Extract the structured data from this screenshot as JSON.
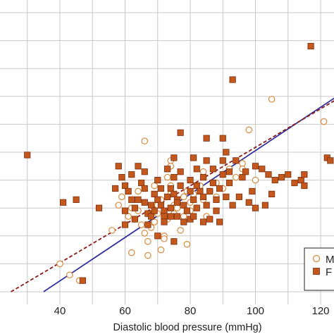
{
  "chart_data": {
    "type": "scatter",
    "xlabel": "Diastolic blood pressure (mmHg)",
    "ylabel": "",
    "xlim": [
      25,
      125
    ],
    "ylim": [
      0,
      100
    ],
    "x_ticks": [
      40,
      60,
      80,
      100,
      120
    ],
    "grid": true,
    "legend_position": "bottom-right",
    "colors": {
      "male": "#d98a3a",
      "female": "#c4581c",
      "male_line": "#3333a0",
      "female_line": "#8b1a1a"
    },
    "series": [
      {
        "name": "M",
        "marker": "open-circle",
        "points": [
          [
            40,
            10
          ],
          [
            43,
            6
          ],
          [
            46,
            4
          ],
          [
            56,
            22
          ],
          [
            58,
            31
          ],
          [
            59,
            34
          ],
          [
            61,
            27
          ],
          [
            62,
            30
          ],
          [
            63,
            26
          ],
          [
            64,
            29
          ],
          [
            65,
            24
          ],
          [
            66,
            21
          ],
          [
            67,
            18
          ],
          [
            68,
            23
          ],
          [
            69,
            25
          ],
          [
            70,
            28
          ],
          [
            70,
            31
          ],
          [
            71,
            15
          ],
          [
            72,
            20
          ],
          [
            72,
            19
          ],
          [
            73,
            26
          ],
          [
            74,
            35
          ],
          [
            74,
            38
          ],
          [
            75,
            31
          ],
          [
            75,
            28
          ],
          [
            76,
            30
          ],
          [
            77,
            22
          ],
          [
            78,
            27
          ],
          [
            78,
            34
          ],
          [
            79,
            36
          ],
          [
            80,
            29
          ],
          [
            80,
            32
          ],
          [
            81,
            35
          ],
          [
            82,
            30
          ],
          [
            83,
            38
          ],
          [
            84,
            33
          ],
          [
            85,
            27
          ],
          [
            86,
            36
          ],
          [
            87,
            39
          ],
          [
            88,
            34
          ],
          [
            90,
            37
          ],
          [
            92,
            44
          ],
          [
            94,
            41
          ],
          [
            96,
            46
          ],
          [
            98,
            58
          ],
          [
            100,
            40
          ],
          [
            105,
            69
          ],
          [
            121,
            61
          ],
          [
            62,
            14
          ],
          [
            67,
            13
          ],
          [
            66,
            54
          ],
          [
            73,
            41
          ],
          [
            74,
            45
          ],
          [
            79,
            17
          ],
          [
            84,
            43
          ],
          [
            88,
            39
          ],
          [
            96,
            44
          ],
          [
            74,
            47
          ],
          [
            71,
            33
          ],
          [
            69,
            38
          ],
          [
            64,
            36
          ]
        ]
      },
      {
        "name": "F",
        "marker": "filled-square",
        "points": [
          [
            30,
            49
          ],
          [
            47,
            4
          ],
          [
            41,
            32
          ],
          [
            45,
            33
          ],
          [
            52,
            30
          ],
          [
            58,
            45
          ],
          [
            60,
            29
          ],
          [
            60,
            38
          ],
          [
            60,
            24
          ],
          [
            61,
            36
          ],
          [
            62,
            42
          ],
          [
            62,
            33
          ],
          [
            63,
            30
          ],
          [
            63,
            26
          ],
          [
            64,
            33
          ],
          [
            65,
            39
          ],
          [
            66,
            37
          ],
          [
            66,
            32
          ],
          [
            67,
            24
          ],
          [
            67,
            28
          ],
          [
            68,
            31
          ],
          [
            68,
            27
          ],
          [
            69,
            35
          ],
          [
            69,
            29
          ],
          [
            70,
            40
          ],
          [
            70,
            33
          ],
          [
            70,
            20
          ],
          [
            71,
            37
          ],
          [
            71,
            31
          ],
          [
            72,
            29
          ],
          [
            72,
            27
          ],
          [
            72,
            25
          ],
          [
            73,
            34
          ],
          [
            73,
            44
          ],
          [
            74,
            37
          ],
          [
            74,
            30
          ],
          [
            74,
            27
          ],
          [
            75,
            41
          ],
          [
            75,
            35
          ],
          [
            75,
            18
          ],
          [
            76,
            33
          ],
          [
            76,
            32
          ],
          [
            76,
            27
          ],
          [
            77,
            57
          ],
          [
            77,
            43
          ],
          [
            77,
            38
          ],
          [
            78,
            31
          ],
          [
            78,
            25
          ],
          [
            79,
            29
          ],
          [
            80,
            40
          ],
          [
            80,
            36
          ],
          [
            80,
            26
          ],
          [
            81,
            48
          ],
          [
            81,
            33
          ],
          [
            81,
            27
          ],
          [
            82,
            44
          ],
          [
            82,
            38
          ],
          [
            82,
            30
          ],
          [
            83,
            36
          ],
          [
            84,
            41
          ],
          [
            84,
            34
          ],
          [
            84,
            25
          ],
          [
            85,
            47
          ],
          [
            85,
            31
          ],
          [
            86,
            36
          ],
          [
            86,
            26
          ],
          [
            87,
            44
          ],
          [
            87,
            39
          ],
          [
            88,
            33
          ],
          [
            88,
            29
          ],
          [
            89,
            37
          ],
          [
            89,
            25
          ],
          [
            90,
            47
          ],
          [
            90,
            55
          ],
          [
            90,
            42
          ],
          [
            91,
            34
          ],
          [
            92,
            39
          ],
          [
            92,
            43
          ],
          [
            93,
            31
          ],
          [
            93,
            76
          ],
          [
            94,
            47
          ],
          [
            95,
            34
          ],
          [
            96,
            41
          ],
          [
            97,
            43
          ],
          [
            98,
            32
          ],
          [
            99,
            36
          ],
          [
            100,
            45
          ],
          [
            100,
            30
          ],
          [
            102,
            44
          ],
          [
            103,
            31
          ],
          [
            104,
            42
          ],
          [
            106,
            40
          ],
          [
            108,
            41
          ],
          [
            110,
            42
          ],
          [
            112,
            39
          ],
          [
            114,
            40
          ],
          [
            115,
            42
          ],
          [
            117,
            88
          ],
          [
            122,
            48
          ],
          [
            123,
            47
          ],
          [
            64,
            45
          ],
          [
            85,
            55
          ],
          [
            105,
            35
          ],
          [
            115,
            38
          ],
          [
            57,
            37
          ],
          [
            66,
            43
          ],
          [
            91,
            50
          ],
          [
            59,
            41
          ],
          [
            75,
            48
          ]
        ]
      }
    ],
    "regression_lines": [
      {
        "series": "M",
        "style": "solid",
        "x": [
          35,
          125
        ],
        "y": [
          0,
          70
        ]
      },
      {
        "series": "F",
        "style": "dashed",
        "x": [
          25,
          125
        ],
        "y": [
          0,
          69
        ]
      }
    ],
    "legend": [
      {
        "marker": "open-circle",
        "label": "M"
      },
      {
        "marker": "filled-square",
        "label": "F"
      }
    ]
  }
}
